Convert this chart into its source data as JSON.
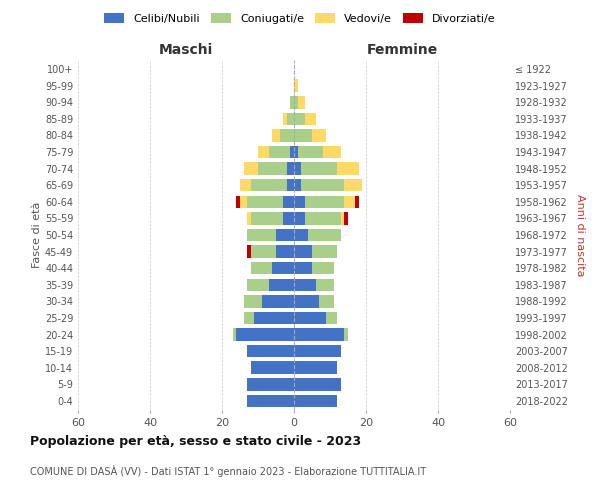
{
  "age_groups": [
    "0-4",
    "5-9",
    "10-14",
    "15-19",
    "20-24",
    "25-29",
    "30-34",
    "35-39",
    "40-44",
    "45-49",
    "50-54",
    "55-59",
    "60-64",
    "65-69",
    "70-74",
    "75-79",
    "80-84",
    "85-89",
    "90-94",
    "95-99",
    "100+"
  ],
  "birth_years": [
    "2018-2022",
    "2013-2017",
    "2008-2012",
    "2003-2007",
    "1998-2002",
    "1993-1997",
    "1988-1992",
    "1983-1987",
    "1978-1982",
    "1973-1977",
    "1968-1972",
    "1963-1967",
    "1958-1962",
    "1953-1957",
    "1948-1952",
    "1943-1947",
    "1938-1942",
    "1933-1937",
    "1928-1932",
    "1923-1927",
    "≤ 1922"
  ],
  "male_celibi": [
    13,
    13,
    12,
    13,
    16,
    11,
    9,
    7,
    6,
    5,
    5,
    3,
    3,
    2,
    2,
    1,
    0,
    0,
    0,
    0,
    0
  ],
  "male_coniugati": [
    0,
    0,
    0,
    0,
    1,
    3,
    5,
    6,
    6,
    7,
    8,
    9,
    10,
    10,
    8,
    6,
    4,
    2,
    1,
    0,
    0
  ],
  "male_vedovi": [
    0,
    0,
    0,
    0,
    0,
    0,
    0,
    0,
    0,
    0,
    0,
    1,
    2,
    3,
    4,
    3,
    2,
    1,
    0,
    0,
    0
  ],
  "male_divorziati": [
    0,
    0,
    0,
    0,
    0,
    0,
    0,
    0,
    0,
    1,
    0,
    0,
    1,
    0,
    0,
    0,
    0,
    0,
    0,
    0,
    0
  ],
  "female_nubili": [
    12,
    13,
    12,
    13,
    14,
    9,
    7,
    6,
    5,
    5,
    4,
    3,
    3,
    2,
    2,
    1,
    0,
    0,
    0,
    0,
    0
  ],
  "female_coniugate": [
    0,
    0,
    0,
    0,
    1,
    3,
    4,
    5,
    6,
    7,
    9,
    10,
    11,
    12,
    10,
    7,
    5,
    3,
    1,
    0,
    0
  ],
  "female_vedove": [
    0,
    0,
    0,
    0,
    0,
    0,
    0,
    0,
    0,
    0,
    0,
    1,
    3,
    5,
    6,
    5,
    4,
    3,
    2,
    1,
    0
  ],
  "female_divorziate": [
    0,
    0,
    0,
    0,
    0,
    0,
    0,
    0,
    0,
    0,
    0,
    1,
    1,
    0,
    0,
    0,
    0,
    0,
    0,
    0,
    0
  ],
  "color_celibi": "#4472C4",
  "color_coniugati": "#AACF8B",
  "color_vedovi": "#FFD966",
  "color_divorziati": "#C00000",
  "xlim": 60,
  "title": "Popolazione per età, sesso e stato civile - 2023",
  "subtitle": "COMUNE DI DASÀ (VV) - Dati ISTAT 1° gennaio 2023 - Elaborazione TUTTITALIA.IT",
  "ylabel_left": "Fasce di età",
  "ylabel_right": "Anni di nascita",
  "label_maschi": "Maschi",
  "label_femmine": "Femmine",
  "legend_celibi": "Celibi/Nubili",
  "legend_coniugati": "Coniugati/e",
  "legend_vedovi": "Vedovi/e",
  "legend_divorziati": "Divorziati/e"
}
